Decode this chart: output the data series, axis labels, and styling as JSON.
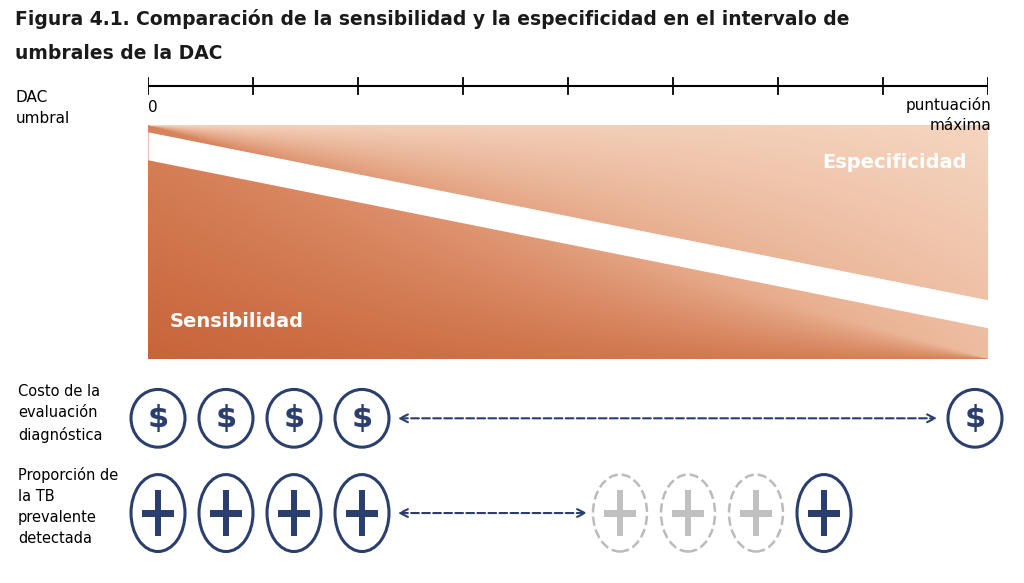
{
  "title_line1": "Figura 4.1. Comparación de la sensibilidad y la especificidad en el intervalo de",
  "title_line2": "umbrales de la DAC",
  "axis_label_left_1": "DAC",
  "axis_label_left_2": "umbral",
  "axis_label_right": "puntuación\nmáxima",
  "axis_start": "0",
  "sensitivity_label": "Sensibilidad",
  "specificity_label": "Especificidad",
  "cost_label": "Costo de la\nevaluación\ndiagnóstica",
  "tb_label": "Proporción de\nla TB\nprevalente\ndetectada",
  "dark_orange": "#C8643A",
  "light_orange": "#EDBB9E",
  "very_light_orange": "#F5D5C0",
  "white": "#FFFFFF",
  "dark_blue": "#2B3F6E",
  "light_gray_cross": "#C0C0C0",
  "dashed_gray_edge": "#BBBBBB",
  "bg_color": "#FFFFFF",
  "n_ticks": 9
}
